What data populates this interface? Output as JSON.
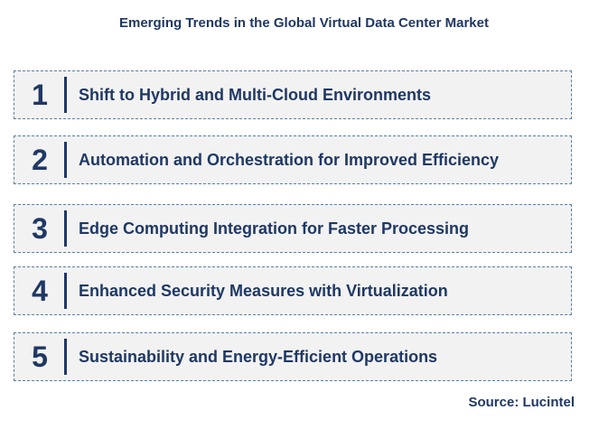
{
  "title": "Emerging Trends in the Global Virtual Data Center Market",
  "trends": [
    {
      "number": "1",
      "label": "Shift to Hybrid and Multi-Cloud Environments"
    },
    {
      "number": "2",
      "label": "Automation and Orchestration for Improved Efficiency"
    },
    {
      "number": "3",
      "label": "Edge Computing Integration for Faster Processing"
    },
    {
      "number": "4",
      "label": "Enhanced Security Measures with Virtualization"
    },
    {
      "number": "5",
      "label": "Sustainability and Energy-Efficient Operations"
    }
  ],
  "source": "Source: Lucintel",
  "colors": {
    "text": "#1f3864",
    "box_background": "#f2f2f2",
    "box_border": "#5b7fa6"
  }
}
